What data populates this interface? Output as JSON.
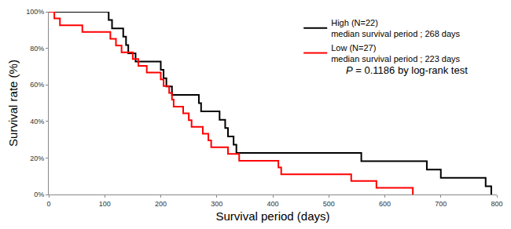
{
  "chart_data": {
    "type": "line",
    "line_style": "step",
    "x_label": "Survival period (days)",
    "y_label": "Survival rate (%)",
    "xlim": [
      0,
      800
    ],
    "xticks": [
      0,
      100,
      200,
      300,
      400,
      500,
      600,
      700,
      800
    ],
    "ylim": [
      0,
      100
    ],
    "yticks": [
      {
        "value": 0,
        "label": "0%"
      },
      {
        "value": 20,
        "label": "20%"
      },
      {
        "value": 40,
        "label": "40%"
      },
      {
        "value": 60,
        "label": "60%"
      },
      {
        "value": 80,
        "label": "80%"
      },
      {
        "value": 100,
        "label": "100%"
      }
    ],
    "grid": false,
    "legend": "upper right",
    "annotations": [
      {
        "text": "P = 0.1186 by log-rank test"
      }
    ],
    "series": [
      {
        "name": "High (N=22)",
        "note": "median survival period ; 268 days",
        "color": "#000000",
        "x": [
          0,
          107,
          113,
          133,
          138,
          142,
          155,
          200,
          205,
          210,
          220,
          268,
          272,
          305,
          315,
          320,
          330,
          335,
          558,
          675,
          700,
          780,
          790
        ],
        "values": [
          100,
          95.5,
          90.9,
          86.4,
          81.8,
          77.3,
          72.7,
          68.2,
          63.6,
          59.1,
          54.5,
          50.0,
          45.5,
          40.9,
          36.4,
          31.8,
          27.3,
          22.7,
          18.2,
          13.6,
          9.1,
          4.5,
          0
        ]
      },
      {
        "name": "Low (N=27)",
        "note": "median survival period ; 223 days",
        "color": "#ff0000",
        "x": [
          0,
          10,
          20,
          60,
          110,
          120,
          130,
          150,
          160,
          175,
          200,
          205,
          215,
          220,
          223,
          240,
          250,
          255,
          275,
          285,
          290,
          320,
          340,
          410,
          415,
          540,
          585,
          650
        ],
        "values": [
          100,
          96.3,
          92.6,
          88.9,
          85.2,
          81.5,
          77.8,
          74.1,
          70.4,
          66.7,
          63.0,
          59.3,
          55.6,
          51.9,
          48.1,
          44.4,
          40.7,
          37.0,
          33.3,
          29.6,
          25.9,
          22.2,
          18.5,
          14.8,
          11.1,
          7.4,
          3.7,
          0
        ]
      }
    ]
  }
}
